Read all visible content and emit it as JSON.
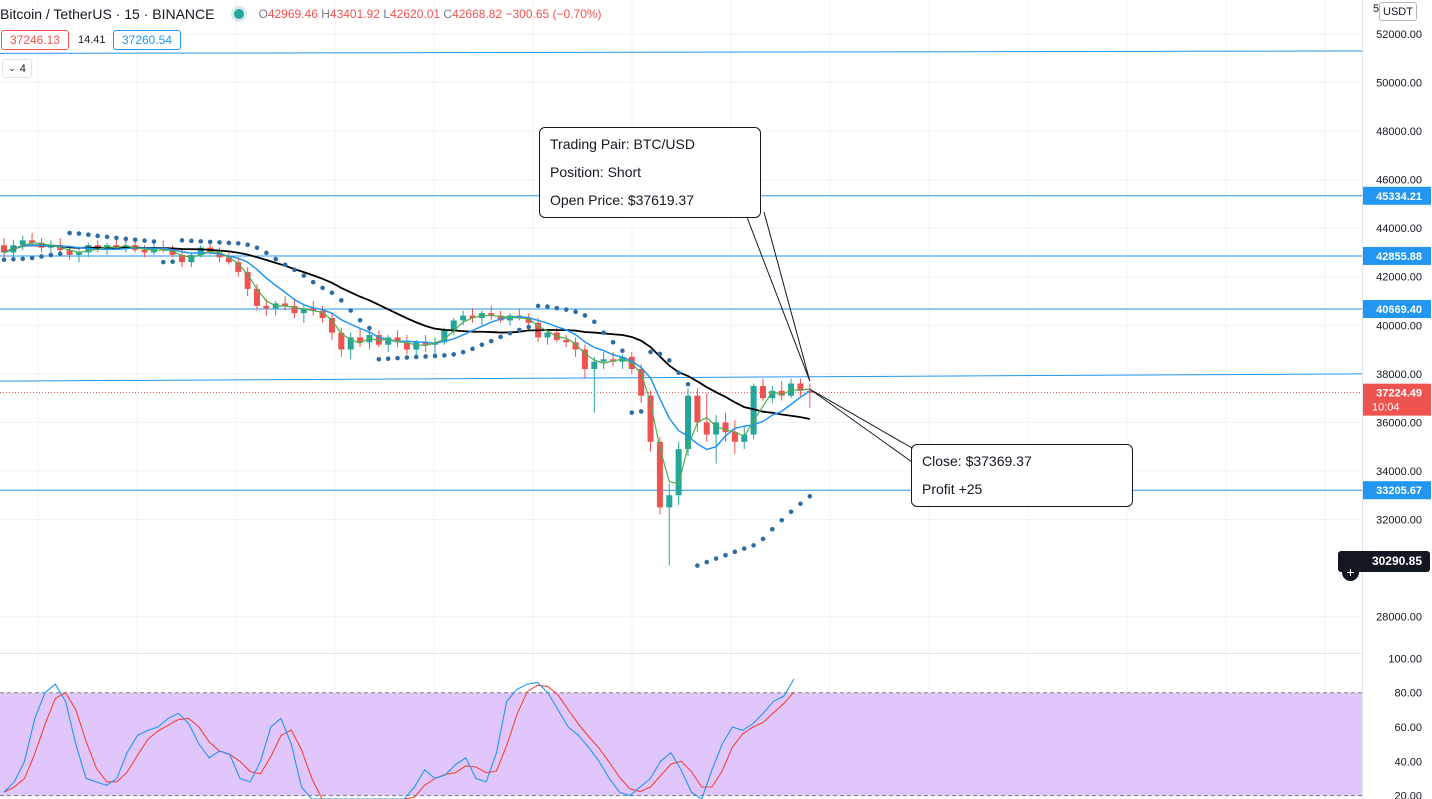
{
  "header": {
    "symbol": "Bitcoin / TetherUS · 15 · BINANCE",
    "ohlc": [
      {
        "k": "O",
        "v": "42969.46"
      },
      {
        "k": "H",
        "v": "43401.92"
      },
      {
        "k": "L",
        "v": "42620.01"
      },
      {
        "k": "C",
        "v": "42668.82"
      }
    ],
    "change": "−300.65 (−0.70%)"
  },
  "quote": {
    "bid": "37246.13",
    "spread": "14.41",
    "ask": "37260.54"
  },
  "indicators_toggle": "4",
  "currency": "USDT",
  "axis_top_partial": "5",
  "annotations": {
    "trade": [
      "Trading Pair: BTC/USD",
      "Position: Short",
      "Open Price: $37619.37"
    ],
    "result": [
      "Close: $37369.37",
      "Profit +25"
    ]
  },
  "colors": {
    "up": "#26a69a",
    "down": "#ef5350",
    "sar": "#2e6da4",
    "ma_fast": "#2196f3",
    "ma_slow": "#000000",
    "ma_mid": "#4caf50",
    "level": "#2196f3",
    "stoch_k": "#2196f3",
    "stoch_d": "#f44336",
    "stoch_band": "#e1c6fb"
  },
  "chart_data": {
    "type": "candlestick",
    "ylim": [
      26500,
      53400
    ],
    "yticks": [
      28000,
      32000,
      34000,
      36000,
      38000,
      40000,
      42000,
      44000,
      46000,
      48000,
      50000,
      52000
    ],
    "horizontal_levels": [
      45334.21,
      42855.88,
      40669.4,
      33205.67
    ],
    "level_labels": [
      "45334.21",
      "42855.88",
      "40669.40",
      "33205.67"
    ],
    "trend_lines": [
      [
        51200,
        51300
      ],
      [
        37700,
        38000
      ]
    ],
    "last_price": {
      "price": 37224.49,
      "label": "37224.49",
      "timer": "10:04"
    },
    "marker": {
      "price": 30290.85,
      "label": "30290.85"
    },
    "candles": [
      {
        "o": 43300,
        "h": 43600,
        "l": 42700,
        "c": 43000
      },
      {
        "o": 43000,
        "h": 43500,
        "l": 42800,
        "c": 43300
      },
      {
        "o": 43300,
        "h": 43700,
        "l": 43100,
        "c": 43500
      },
      {
        "o": 43500,
        "h": 43800,
        "l": 43300,
        "c": 43400
      },
      {
        "o": 43400,
        "h": 43600,
        "l": 43000,
        "c": 43200
      },
      {
        "o": 43200,
        "h": 43500,
        "l": 42900,
        "c": 43300
      },
      {
        "o": 43300,
        "h": 43600,
        "l": 43000,
        "c": 43100
      },
      {
        "o": 43100,
        "h": 43300,
        "l": 42700,
        "c": 42900
      },
      {
        "o": 42900,
        "h": 43200,
        "l": 42600,
        "c": 43000
      },
      {
        "o": 43000,
        "h": 43400,
        "l": 42800,
        "c": 43300
      },
      {
        "o": 43300,
        "h": 43500,
        "l": 43000,
        "c": 43100
      },
      {
        "o": 43100,
        "h": 43400,
        "l": 42900,
        "c": 43300
      },
      {
        "o": 43300,
        "h": 43600,
        "l": 43100,
        "c": 43200
      },
      {
        "o": 43200,
        "h": 43500,
        "l": 43000,
        "c": 43300
      },
      {
        "o": 43300,
        "h": 43500,
        "l": 43000,
        "c": 43100
      },
      {
        "o": 43100,
        "h": 43300,
        "l": 42800,
        "c": 43000
      },
      {
        "o": 43000,
        "h": 43400,
        "l": 42900,
        "c": 43200
      },
      {
        "o": 43200,
        "h": 43500,
        "l": 43000,
        "c": 43100
      },
      {
        "o": 43100,
        "h": 43300,
        "l": 42800,
        "c": 42900
      },
      {
        "o": 42900,
        "h": 43100,
        "l": 42400,
        "c": 42600
      },
      {
        "o": 42600,
        "h": 43000,
        "l": 42400,
        "c": 42900
      },
      {
        "o": 42900,
        "h": 43300,
        "l": 42800,
        "c": 43200
      },
      {
        "o": 43200,
        "h": 43400,
        "l": 42900,
        "c": 43000
      },
      {
        "o": 43000,
        "h": 43200,
        "l": 42600,
        "c": 42800
      },
      {
        "o": 42800,
        "h": 43000,
        "l": 42500,
        "c": 42600
      },
      {
        "o": 42600,
        "h": 42800,
        "l": 42000,
        "c": 42200
      },
      {
        "o": 42200,
        "h": 42400,
        "l": 41200,
        "c": 41500
      },
      {
        "o": 41500,
        "h": 41700,
        "l": 40600,
        "c": 40800
      },
      {
        "o": 40800,
        "h": 41100,
        "l": 40400,
        "c": 40700
      },
      {
        "o": 40700,
        "h": 41000,
        "l": 40400,
        "c": 40900
      },
      {
        "o": 40900,
        "h": 41200,
        "l": 40600,
        "c": 40800
      },
      {
        "o": 40800,
        "h": 41100,
        "l": 40300,
        "c": 40500
      },
      {
        "o": 40500,
        "h": 40900,
        "l": 40100,
        "c": 40700
      },
      {
        "o": 40700,
        "h": 41000,
        "l": 40400,
        "c": 40600
      },
      {
        "o": 40600,
        "h": 40800,
        "l": 40100,
        "c": 40300
      },
      {
        "o": 40300,
        "h": 40500,
        "l": 39400,
        "c": 39700
      },
      {
        "o": 39700,
        "h": 39900,
        "l": 38700,
        "c": 39000
      },
      {
        "o": 39000,
        "h": 39700,
        "l": 38600,
        "c": 39500
      },
      {
        "o": 39500,
        "h": 39900,
        "l": 39100,
        "c": 39300
      },
      {
        "o": 39300,
        "h": 39800,
        "l": 39000,
        "c": 39600
      },
      {
        "o": 39600,
        "h": 39800,
        "l": 39100,
        "c": 39200
      },
      {
        "o": 39200,
        "h": 39600,
        "l": 38900,
        "c": 39500
      },
      {
        "o": 39500,
        "h": 39800,
        "l": 39100,
        "c": 39300
      },
      {
        "o": 39300,
        "h": 39600,
        "l": 38800,
        "c": 39000
      },
      {
        "o": 39000,
        "h": 39400,
        "l": 38700,
        "c": 39300
      },
      {
        "o": 39300,
        "h": 39600,
        "l": 38900,
        "c": 39200
      },
      {
        "o": 39200,
        "h": 39500,
        "l": 38800,
        "c": 39300
      },
      {
        "o": 39300,
        "h": 39900,
        "l": 39200,
        "c": 39800
      },
      {
        "o": 39800,
        "h": 40300,
        "l": 39600,
        "c": 40200
      },
      {
        "o": 40200,
        "h": 40600,
        "l": 40000,
        "c": 40400
      },
      {
        "o": 40400,
        "h": 40700,
        "l": 40100,
        "c": 40300
      },
      {
        "o": 40300,
        "h": 40600,
        "l": 40000,
        "c": 40500
      },
      {
        "o": 40500,
        "h": 40800,
        "l": 40200,
        "c": 40400
      },
      {
        "o": 40400,
        "h": 40600,
        "l": 40100,
        "c": 40200
      },
      {
        "o": 40200,
        "h": 40500,
        "l": 40000,
        "c": 40400
      },
      {
        "o": 40400,
        "h": 40700,
        "l": 40200,
        "c": 40300
      },
      {
        "o": 40300,
        "h": 40500,
        "l": 40000,
        "c": 40100
      },
      {
        "o": 40100,
        "h": 40300,
        "l": 39300,
        "c": 39500
      },
      {
        "o": 39500,
        "h": 39800,
        "l": 39200,
        "c": 39700
      },
      {
        "o": 39700,
        "h": 39900,
        "l": 39300,
        "c": 39400
      },
      {
        "o": 39400,
        "h": 39600,
        "l": 39100,
        "c": 39300
      },
      {
        "o": 39300,
        "h": 39500,
        "l": 38700,
        "c": 39000
      },
      {
        "o": 39000,
        "h": 39200,
        "l": 37800,
        "c": 38200
      },
      {
        "o": 38200,
        "h": 38700,
        "l": 36400,
        "c": 38500
      },
      {
        "o": 38500,
        "h": 38900,
        "l": 38200,
        "c": 38600
      },
      {
        "o": 38600,
        "h": 38900,
        "l": 38300,
        "c": 38500
      },
      {
        "o": 38500,
        "h": 38800,
        "l": 38200,
        "c": 38700
      },
      {
        "o": 38700,
        "h": 38900,
        "l": 38000,
        "c": 38200
      },
      {
        "o": 38200,
        "h": 38400,
        "l": 36800,
        "c": 37100
      },
      {
        "o": 37100,
        "h": 37300,
        "l": 34800,
        "c": 35200
      },
      {
        "o": 35200,
        "h": 35400,
        "l": 32200,
        "c": 32500
      },
      {
        "o": 32500,
        "h": 33500,
        "l": 30100,
        "c": 33000
      },
      {
        "o": 33000,
        "h": 35200,
        "l": 32600,
        "c": 34900
      },
      {
        "o": 34900,
        "h": 37400,
        "l": 34600,
        "c": 37100
      },
      {
        "o": 37100,
        "h": 37400,
        "l": 35600,
        "c": 36000
      },
      {
        "o": 36000,
        "h": 37200,
        "l": 35200,
        "c": 35500
      },
      {
        "o": 35500,
        "h": 36300,
        "l": 34300,
        "c": 36000
      },
      {
        "o": 36000,
        "h": 36400,
        "l": 35200,
        "c": 35600
      },
      {
        "o": 35600,
        "h": 36100,
        "l": 34700,
        "c": 35200
      },
      {
        "o": 35200,
        "h": 35800,
        "l": 34900,
        "c": 35500
      },
      {
        "o": 35500,
        "h": 37600,
        "l": 35300,
        "c": 37500
      },
      {
        "o": 37500,
        "h": 37800,
        "l": 36900,
        "c": 37000
      },
      {
        "o": 37000,
        "h": 37500,
        "l": 36800,
        "c": 37300
      },
      {
        "o": 37300,
        "h": 37700,
        "l": 36900,
        "c": 37100
      },
      {
        "o": 37100,
        "h": 37800,
        "l": 37000,
        "c": 37600
      },
      {
        "o": 37600,
        "h": 37800,
        "l": 37000,
        "c": 37300
      },
      {
        "o": 37300,
        "h": 37600,
        "l": 36600,
        "c": 37224
      }
    ],
    "stochastic": {
      "ylim": [
        18,
        102
      ],
      "yticks": [
        20,
        40,
        60,
        80
      ],
      "axis_labels": [
        "20.00",
        "40.00",
        "60.00",
        "80.00",
        "100.00"
      ],
      "band": [
        20,
        80
      ],
      "k": [
        22,
        28,
        40,
        65,
        80,
        85,
        75,
        50,
        30,
        28,
        26,
        30,
        45,
        55,
        58,
        60,
        65,
        68,
        62,
        50,
        42,
        46,
        44,
        30,
        28,
        40,
        60,
        65,
        50,
        25,
        15,
        10,
        12,
        16,
        14,
        15,
        12,
        15,
        14,
        18,
        25,
        35,
        30,
        32,
        38,
        42,
        30,
        28,
        45,
        75,
        82,
        85,
        86,
        80,
        70,
        60,
        55,
        48,
        40,
        30,
        22,
        20,
        25,
        30,
        40,
        45,
        35,
        22,
        18,
        35,
        50,
        60,
        58,
        62,
        68,
        75,
        78,
        88
      ]
    }
  }
}
